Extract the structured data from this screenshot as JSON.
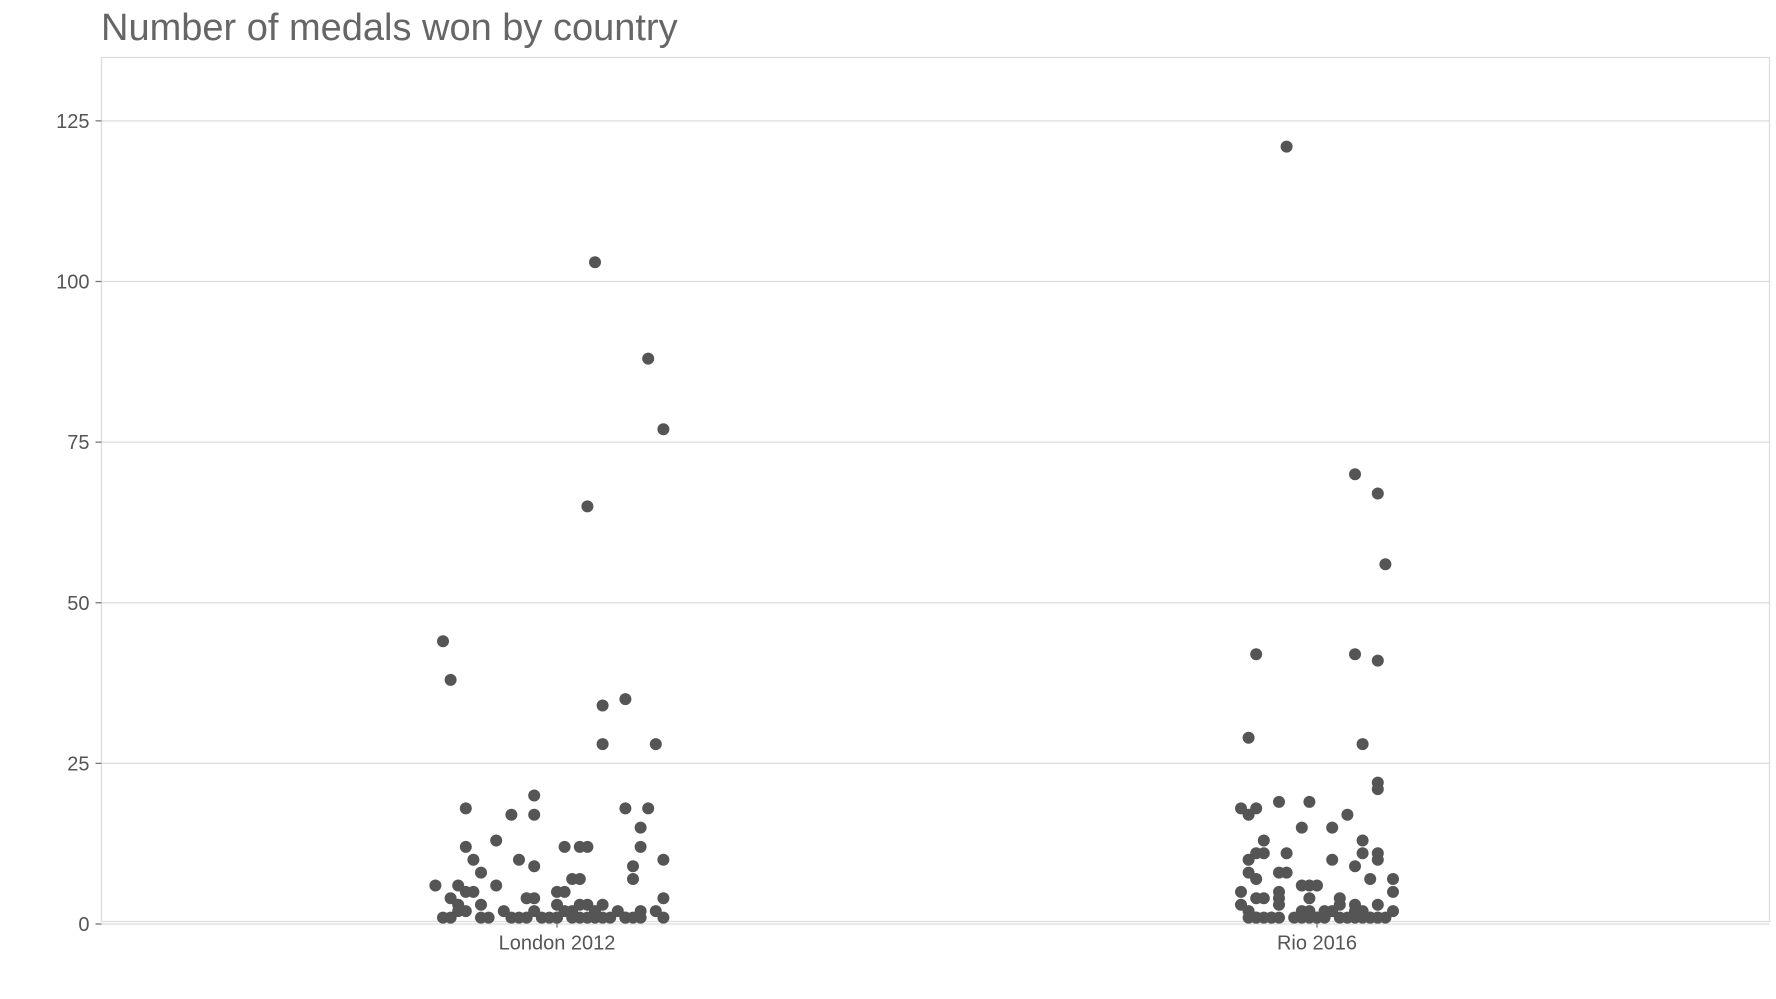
{
  "chart_data": {
    "type": "scatter",
    "title": "Number of medals won by country",
    "xlabel": "",
    "ylabel": "",
    "categories": [
      "London 2012",
      "Rio 2016"
    ],
    "ylim": [
      -0.5,
      134
    ],
    "yticks": [
      0,
      25,
      50,
      75,
      100,
      125
    ],
    "grid": true,
    "legend": "none",
    "point_color": "#555555",
    "series": [
      {
        "category": "London 2012",
        "points": [
          {
            "jitter": 0.05,
            "y": 103
          },
          {
            "jitter": 0.12,
            "y": 88
          },
          {
            "jitter": 0.14,
            "y": 77
          },
          {
            "jitter": 0.04,
            "y": 65
          },
          {
            "jitter": -0.15,
            "y": 44
          },
          {
            "jitter": -0.14,
            "y": 38
          },
          {
            "jitter": 0.09,
            "y": 35
          },
          {
            "jitter": 0.06,
            "y": 34
          },
          {
            "jitter": 0.06,
            "y": 28
          },
          {
            "jitter": 0.13,
            "y": 28
          },
          {
            "jitter": -0.03,
            "y": 20
          },
          {
            "jitter": -0.12,
            "y": 18
          },
          {
            "jitter": 0.09,
            "y": 18
          },
          {
            "jitter": 0.12,
            "y": 18
          },
          {
            "jitter": -0.06,
            "y": 17
          },
          {
            "jitter": -0.03,
            "y": 17
          },
          {
            "jitter": 0.11,
            "y": 15
          },
          {
            "jitter": -0.08,
            "y": 13
          },
          {
            "jitter": -0.12,
            "y": 12
          },
          {
            "jitter": 0.01,
            "y": 12
          },
          {
            "jitter": 0.03,
            "y": 12
          },
          {
            "jitter": 0.04,
            "y": 12
          },
          {
            "jitter": 0.11,
            "y": 12
          },
          {
            "jitter": -0.05,
            "y": 10
          },
          {
            "jitter": -0.11,
            "y": 10
          },
          {
            "jitter": 0.14,
            "y": 10
          },
          {
            "jitter": -0.03,
            "y": 9
          },
          {
            "jitter": 0.1,
            "y": 9
          },
          {
            "jitter": -0.1,
            "y": 8
          },
          {
            "jitter": 0.02,
            "y": 7
          },
          {
            "jitter": 0.03,
            "y": 7
          },
          {
            "jitter": 0.1,
            "y": 7
          },
          {
            "jitter": -0.16,
            "y": 6
          },
          {
            "jitter": -0.08,
            "y": 6
          },
          {
            "jitter": -0.13,
            "y": 6
          },
          {
            "jitter": -0.12,
            "y": 5
          },
          {
            "jitter": -0.11,
            "y": 5
          },
          {
            "jitter": 0.0,
            "y": 5
          },
          {
            "jitter": 0.01,
            "y": 5
          },
          {
            "jitter": -0.14,
            "y": 4
          },
          {
            "jitter": -0.03,
            "y": 4
          },
          {
            "jitter": -0.04,
            "y": 4
          },
          {
            "jitter": 0.14,
            "y": 4
          },
          {
            "jitter": -0.13,
            "y": 3
          },
          {
            "jitter": -0.1,
            "y": 3
          },
          {
            "jitter": 0.0,
            "y": 3
          },
          {
            "jitter": 0.03,
            "y": 3
          },
          {
            "jitter": 0.04,
            "y": 3
          },
          {
            "jitter": 0.06,
            "y": 3
          },
          {
            "jitter": -0.13,
            "y": 2
          },
          {
            "jitter": -0.12,
            "y": 2
          },
          {
            "jitter": -0.07,
            "y": 2
          },
          {
            "jitter": -0.03,
            "y": 2
          },
          {
            "jitter": 0.01,
            "y": 2
          },
          {
            "jitter": 0.02,
            "y": 2
          },
          {
            "jitter": 0.05,
            "y": 2
          },
          {
            "jitter": 0.08,
            "y": 2
          },
          {
            "jitter": 0.11,
            "y": 2
          },
          {
            "jitter": 0.13,
            "y": 2
          },
          {
            "jitter": -0.14,
            "y": 1
          },
          {
            "jitter": -0.1,
            "y": 1
          },
          {
            "jitter": -0.09,
            "y": 1
          },
          {
            "jitter": -0.06,
            "y": 1
          },
          {
            "jitter": -0.04,
            "y": 1
          },
          {
            "jitter": -0.02,
            "y": 1
          },
          {
            "jitter": -0.01,
            "y": 1
          },
          {
            "jitter": 0.0,
            "y": 1
          },
          {
            "jitter": 0.02,
            "y": 1
          },
          {
            "jitter": 0.03,
            "y": 1
          },
          {
            "jitter": 0.04,
            "y": 1
          },
          {
            "jitter": 0.06,
            "y": 1
          },
          {
            "jitter": 0.07,
            "y": 1
          },
          {
            "jitter": 0.09,
            "y": 1
          },
          {
            "jitter": 0.11,
            "y": 1
          },
          {
            "jitter": 0.14,
            "y": 1
          },
          {
            "jitter": -0.15,
            "y": 1
          },
          {
            "jitter": -0.05,
            "y": 1
          },
          {
            "jitter": 0.0,
            "y": 1
          },
          {
            "jitter": 0.05,
            "y": 1
          },
          {
            "jitter": 0.09,
            "y": 1
          },
          {
            "jitter": 0.1,
            "y": 1
          }
        ]
      },
      {
        "category": "Rio 2016",
        "points": [
          {
            "jitter": -0.04,
            "y": 121
          },
          {
            "jitter": 0.05,
            "y": 70
          },
          {
            "jitter": 0.08,
            "y": 67
          },
          {
            "jitter": 0.09,
            "y": 56
          },
          {
            "jitter": -0.08,
            "y": 42
          },
          {
            "jitter": 0.05,
            "y": 42
          },
          {
            "jitter": 0.08,
            "y": 41
          },
          {
            "jitter": -0.09,
            "y": 29
          },
          {
            "jitter": 0.06,
            "y": 28
          },
          {
            "jitter": 0.08,
            "y": 22
          },
          {
            "jitter": 0.08,
            "y": 21
          },
          {
            "jitter": -0.01,
            "y": 19
          },
          {
            "jitter": -0.05,
            "y": 19
          },
          {
            "jitter": -0.1,
            "y": 18
          },
          {
            "jitter": -0.08,
            "y": 18
          },
          {
            "jitter": -0.09,
            "y": 17
          },
          {
            "jitter": 0.04,
            "y": 17
          },
          {
            "jitter": -0.02,
            "y": 15
          },
          {
            "jitter": 0.02,
            "y": 15
          },
          {
            "jitter": 0.06,
            "y": 13
          },
          {
            "jitter": -0.07,
            "y": 13
          },
          {
            "jitter": -0.08,
            "y": 11
          },
          {
            "jitter": -0.07,
            "y": 11
          },
          {
            "jitter": -0.04,
            "y": 11
          },
          {
            "jitter": 0.06,
            "y": 11
          },
          {
            "jitter": 0.08,
            "y": 11
          },
          {
            "jitter": 0.08,
            "y": 10
          },
          {
            "jitter": -0.09,
            "y": 10
          },
          {
            "jitter": 0.02,
            "y": 10
          },
          {
            "jitter": 0.05,
            "y": 9
          },
          {
            "jitter": -0.09,
            "y": 8
          },
          {
            "jitter": -0.05,
            "y": 8
          },
          {
            "jitter": -0.04,
            "y": 8
          },
          {
            "jitter": -0.08,
            "y": 7
          },
          {
            "jitter": 0.07,
            "y": 7
          },
          {
            "jitter": 0.1,
            "y": 7
          },
          {
            "jitter": -0.01,
            "y": 6
          },
          {
            "jitter": 0.0,
            "y": 6
          },
          {
            "jitter": -0.02,
            "y": 6
          },
          {
            "jitter": -0.1,
            "y": 5
          },
          {
            "jitter": -0.05,
            "y": 5
          },
          {
            "jitter": 0.1,
            "y": 5
          },
          {
            "jitter": -0.08,
            "y": 4
          },
          {
            "jitter": -0.07,
            "y": 4
          },
          {
            "jitter": -0.05,
            "y": 4
          },
          {
            "jitter": -0.01,
            "y": 4
          },
          {
            "jitter": 0.03,
            "y": 4
          },
          {
            "jitter": -0.1,
            "y": 3
          },
          {
            "jitter": -0.05,
            "y": 3
          },
          {
            "jitter": 0.03,
            "y": 3
          },
          {
            "jitter": 0.05,
            "y": 3
          },
          {
            "jitter": 0.08,
            "y": 3
          },
          {
            "jitter": -0.09,
            "y": 2
          },
          {
            "jitter": -0.02,
            "y": 2
          },
          {
            "jitter": -0.01,
            "y": 2
          },
          {
            "jitter": 0.01,
            "y": 2
          },
          {
            "jitter": 0.02,
            "y": 2
          },
          {
            "jitter": 0.05,
            "y": 2
          },
          {
            "jitter": 0.06,
            "y": 2
          },
          {
            "jitter": 0.1,
            "y": 2
          },
          {
            "jitter": -0.09,
            "y": 1
          },
          {
            "jitter": -0.08,
            "y": 1
          },
          {
            "jitter": -0.07,
            "y": 1
          },
          {
            "jitter": -0.06,
            "y": 1
          },
          {
            "jitter": -0.05,
            "y": 1
          },
          {
            "jitter": -0.03,
            "y": 1
          },
          {
            "jitter": -0.02,
            "y": 1
          },
          {
            "jitter": -0.01,
            "y": 1
          },
          {
            "jitter": 0.0,
            "y": 1
          },
          {
            "jitter": 0.01,
            "y": 1
          },
          {
            "jitter": 0.03,
            "y": 1
          },
          {
            "jitter": 0.04,
            "y": 1
          },
          {
            "jitter": 0.05,
            "y": 1
          },
          {
            "jitter": 0.06,
            "y": 1
          },
          {
            "jitter": 0.07,
            "y": 1
          },
          {
            "jitter": 0.08,
            "y": 1
          },
          {
            "jitter": 0.09,
            "y": 1
          },
          {
            "jitter": 0.07,
            "y": 1
          },
          {
            "jitter": -0.08,
            "y": 1
          },
          {
            "jitter": 0.0,
            "y": 1
          },
          {
            "jitter": 0.08,
            "y": 1
          },
          {
            "jitter": -0.06,
            "y": 1
          }
        ]
      }
    ]
  }
}
